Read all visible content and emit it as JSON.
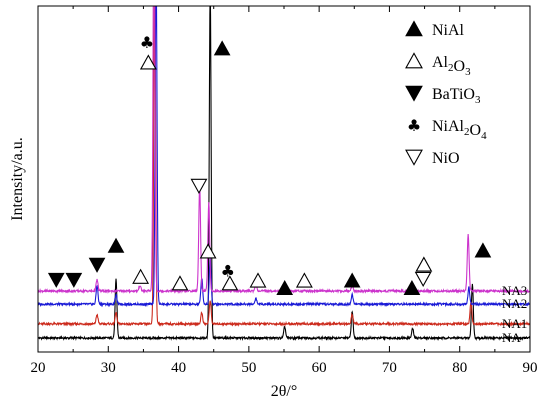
{
  "chart_data": {
    "type": "line",
    "xlabel": "2θ/°",
    "ylabel": "Intensity/a.u.",
    "xlim": [
      20,
      90
    ],
    "x_ticks": [
      20,
      30,
      40,
      50,
      60,
      70,
      80,
      90
    ],
    "grid": false,
    "legend_position": "top-right",
    "legend": [
      {
        "symbol": "filled-triangle-up",
        "label": "NiAl"
      },
      {
        "symbol": "open-triangle-up",
        "label": "Al2O3"
      },
      {
        "symbol": "filled-triangle-down",
        "label": "BaTiO3"
      },
      {
        "symbol": "club",
        "label": "NiAl2O4"
      },
      {
        "symbol": "open-triangle-down",
        "label": "NiO"
      }
    ],
    "series": [
      {
        "name": "NA",
        "color": "#000000",
        "baseline": 0,
        "peaks": [
          [
            31.1,
            62
          ],
          [
            44.5,
            370
          ],
          [
            55.1,
            12
          ],
          [
            64.7,
            28
          ],
          [
            73.3,
            10
          ],
          [
            81.8,
            58
          ]
        ]
      },
      {
        "name": "NA1",
        "color": "#cc2a1c",
        "baseline": 15,
        "peaks": [
          [
            28.4,
            10
          ],
          [
            31.1,
            12
          ],
          [
            36.6,
            380
          ],
          [
            43.3,
            12
          ],
          [
            44.5,
            25
          ],
          [
            64.7,
            10
          ],
          [
            81.6,
            24
          ]
        ]
      },
      {
        "name": "NA2",
        "color": "#1a1ad6",
        "baseline": 36,
        "peaks": [
          [
            28.4,
            20
          ],
          [
            31.1,
            10
          ],
          [
            36.8,
            360
          ],
          [
            43.3,
            28
          ],
          [
            44.5,
            50
          ],
          [
            51.0,
            6
          ],
          [
            64.7,
            10
          ],
          [
            81.3,
            18
          ]
        ]
      },
      {
        "name": "NA3",
        "color": "#cc33cc",
        "baseline": 50,
        "peaks": [
          [
            28.4,
            12
          ],
          [
            34.5,
            6
          ],
          [
            36.5,
            420
          ],
          [
            43.0,
            112
          ],
          [
            44.3,
            95
          ],
          [
            51.0,
            7
          ],
          [
            64.7,
            6
          ],
          [
            81.2,
            60
          ]
        ]
      }
    ],
    "phase_markers": [
      {
        "phase": "BaTiO3",
        "symbol": "filled-triangle-down",
        "x": 22.6,
        "level": 62
      },
      {
        "phase": "BaTiO3",
        "symbol": "filled-triangle-down",
        "x": 25.1,
        "level": 62
      },
      {
        "phase": "BaTiO3",
        "symbol": "filled-triangle-down",
        "x": 28.4,
        "level": 78
      },
      {
        "phase": "NiAl",
        "symbol": "filled-triangle-up",
        "x": 31.1,
        "level": 98
      },
      {
        "phase": "Al2O3",
        "symbol": "open-triangle-up",
        "x": 34.6,
        "level": 65
      },
      {
        "phase": "Al2O3",
        "symbol": "open-triangle-up",
        "x": 35.7,
        "level": 293
      },
      {
        "phase": "NiAl2O4",
        "symbol": "club",
        "x": 35.5,
        "level": 315
      },
      {
        "phase": "Al2O3",
        "symbol": "open-triangle-up",
        "x": 40.2,
        "level": 58
      },
      {
        "phase": "NiO",
        "symbol": "open-triangle-down",
        "x": 42.9,
        "level": 162
      },
      {
        "phase": "Al2O3",
        "symbol": "open-triangle-up",
        "x": 44.2,
        "level": 92
      },
      {
        "phase": "NiAl",
        "symbol": "filled-triangle-up",
        "x": 46.2,
        "level": 308
      },
      {
        "phase": "NiAl2O4",
        "symbol": "club",
        "x": 47.0,
        "level": 72
      },
      {
        "phase": "Al2O3",
        "symbol": "open-triangle-up",
        "x": 47.3,
        "level": 58
      },
      {
        "phase": "Al2O3",
        "symbol": "open-triangle-up",
        "x": 51.3,
        "level": 61
      },
      {
        "phase": "NiAl",
        "symbol": "filled-triangle-up",
        "x": 55.1,
        "level": 53
      },
      {
        "phase": "Al2O3",
        "symbol": "open-triangle-up",
        "x": 57.9,
        "level": 61
      },
      {
        "phase": "NiAl",
        "symbol": "filled-triangle-up",
        "x": 64.7,
        "level": 61
      },
      {
        "phase": "NiAl",
        "symbol": "filled-triangle-up",
        "x": 73.2,
        "level": 53
      },
      {
        "phase": "NiO",
        "symbol": "open-triangle-down",
        "x": 74.8,
        "level": 63
      },
      {
        "phase": "Al2O3",
        "symbol": "open-triangle-up",
        "x": 74.9,
        "level": 78
      },
      {
        "phase": "NiAl",
        "symbol": "filled-triangle-up",
        "x": 83.3,
        "level": 93
      }
    ]
  }
}
